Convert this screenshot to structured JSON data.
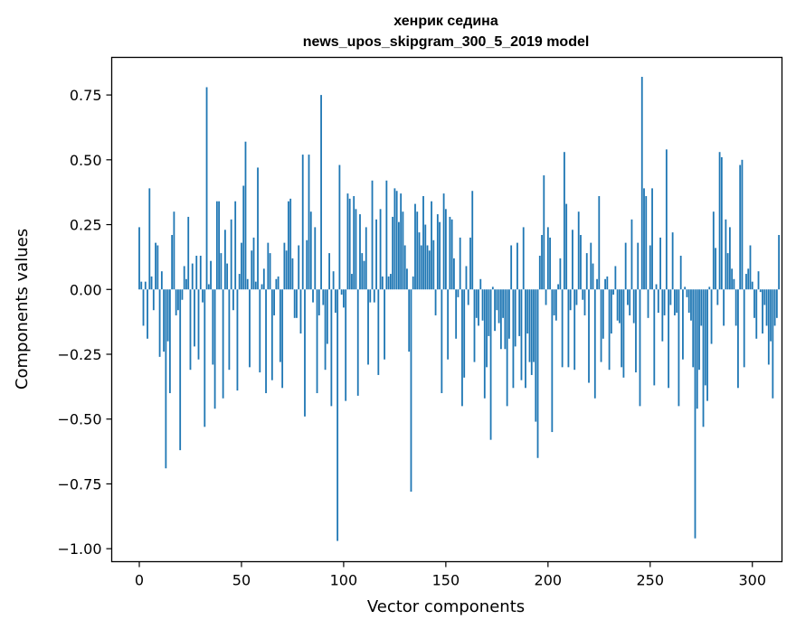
{
  "chart_data": {
    "type": "bar",
    "title": "хенрик седина",
    "subtitle": "news_upos_skipgram_300_5_2019 model",
    "xlabel": "Vector components",
    "ylabel": "Components values",
    "xlim": [
      -13.5,
      314.5
    ],
    "ylim": [
      -1.05,
      0.895
    ],
    "xticks": [
      0,
      50,
      100,
      150,
      200,
      250,
      300
    ],
    "xtick_labels": [
      "0",
      "50",
      "100",
      "150",
      "200",
      "250",
      "300"
    ],
    "yticks": [
      0.75,
      0.5,
      0.25,
      0.0,
      -0.25,
      -0.5,
      -0.75,
      -1.0
    ],
    "ytick_labels": [
      "0.75",
      "0.50",
      "0.25",
      "0.00",
      "−0.25",
      "−0.50",
      "−0.75",
      "−1.00"
    ],
    "color": "#1f77b4",
    "values": [
      0.24,
      0.03,
      -0.14,
      0.03,
      -0.19,
      0.39,
      0.05,
      -0.08,
      0.18,
      0.17,
      -0.26,
      0.07,
      -0.24,
      -0.69,
      -0.2,
      -0.4,
      0.21,
      0.3,
      -0.1,
      -0.08,
      -0.62,
      -0.04,
      0.09,
      0.04,
      0.28,
      -0.31,
      0.1,
      -0.22,
      0.13,
      -0.27,
      0.13,
      -0.05,
      -0.53,
      0.78,
      0.02,
      0.11,
      -0.29,
      -0.46,
      0.34,
      0.34,
      0.14,
      -0.42,
      0.23,
      0.1,
      -0.31,
      0.27,
      -0.08,
      0.34,
      -0.39,
      0.06,
      0.18,
      0.4,
      0.57,
      0.04,
      -0.3,
      0.15,
      0.2,
      0.03,
      0.47,
      -0.32,
      0.02,
      0.08,
      -0.4,
      0.18,
      0.14,
      -0.35,
      -0.1,
      0.04,
      0.05,
      -0.28,
      -0.38,
      0.18,
      0.15,
      0.34,
      0.35,
      0.12,
      -0.11,
      -0.11,
      0.17,
      -0.17,
      0.52,
      -0.49,
      0.19,
      0.52,
      0.3,
      -0.05,
      0.24,
      -0.4,
      -0.1,
      0.75,
      -0.06,
      -0.31,
      -0.21,
      0.14,
      -0.45,
      0.07,
      -0.09,
      -0.97,
      0.48,
      -0.02,
      -0.07,
      -0.43,
      0.37,
      0.35,
      0.06,
      0.36,
      0.31,
      -0.41,
      0.29,
      0.14,
      0.11,
      0.24,
      -0.29,
      -0.05,
      0.42,
      -0.05,
      0.27,
      -0.33,
      0.31,
      0.05,
      -0.27,
      0.42,
      0.05,
      0.06,
      0.28,
      0.39,
      0.38,
      0.26,
      0.37,
      0.3,
      0.17,
      0.08,
      -0.24,
      -0.78,
      0.05,
      0.33,
      0.3,
      0.22,
      0.17,
      0.36,
      0.25,
      0.17,
      0.15,
      0.34,
      0.19,
      -0.1,
      0.29,
      0.26,
      -0.4,
      0.37,
      0.31,
      -0.27,
      0.28,
      0.27,
      0.12,
      -0.19,
      -0.03,
      0.2,
      -0.45,
      -0.34,
      0.09,
      -0.06,
      0.2,
      0.38,
      -0.28,
      -0.11,
      -0.14,
      0.04,
      -0.12,
      -0.42,
      -0.3,
      -0.18,
      -0.58,
      0.01,
      -0.16,
      -0.08,
      -0.13,
      -0.23,
      -0.11,
      -0.23,
      -0.45,
      -0.19,
      0.17,
      -0.38,
      -0.22,
      0.18,
      -0.18,
      -0.35,
      0.24,
      -0.38,
      -0.17,
      -0.28,
      -0.33,
      -0.28,
      -0.51,
      -0.65,
      0.13,
      0.21,
      0.44,
      -0.06,
      0.24,
      0.2,
      -0.55,
      -0.1,
      -0.12,
      0.02,
      0.12,
      -0.3,
      0.53,
      0.33,
      -0.3,
      -0.08,
      0.23,
      -0.31,
      -0.06,
      0.3,
      0.21,
      -0.04,
      -0.1,
      0.14,
      -0.36,
      0.18,
      0.1,
      -0.42,
      0.04,
      0.36,
      -0.28,
      -0.19,
      0.04,
      0.05,
      -0.31,
      -0.17,
      -0.02,
      0.09,
      -0.12,
      -0.13,
      -0.3,
      -0.34,
      0.18,
      -0.06,
      -0.1,
      0.27,
      -0.13,
      -0.32,
      0.18,
      -0.45,
      0.82,
      0.39,
      0.36,
      -0.11,
      0.17,
      0.39,
      -0.37,
      0.02,
      -0.09,
      0.2,
      -0.2,
      -0.1,
      0.54,
      -0.38,
      -0.06,
      0.22,
      -0.1,
      -0.09,
      -0.45,
      0.13,
      -0.27,
      0.01,
      -0.03,
      -0.09,
      -0.12,
      -0.3,
      -0.96,
      -0.46,
      -0.31,
      -0.14,
      -0.53,
      -0.37,
      -0.43,
      0.01,
      -0.21,
      0.3,
      0.16,
      -0.06,
      0.53,
      0.51,
      -0.14,
      0.27,
      0.14,
      0.24,
      0.08,
      0.04,
      -0.14,
      -0.38,
      0.48,
      0.5,
      -0.3,
      0.06,
      0.08,
      0.17,
      0.03,
      -0.11,
      -0.19,
      0.07,
      -0.01,
      -0.17,
      -0.06,
      -0.14,
      -0.29,
      -0.2,
      -0.42,
      -0.14,
      -0.11,
      0.21
    ]
  }
}
